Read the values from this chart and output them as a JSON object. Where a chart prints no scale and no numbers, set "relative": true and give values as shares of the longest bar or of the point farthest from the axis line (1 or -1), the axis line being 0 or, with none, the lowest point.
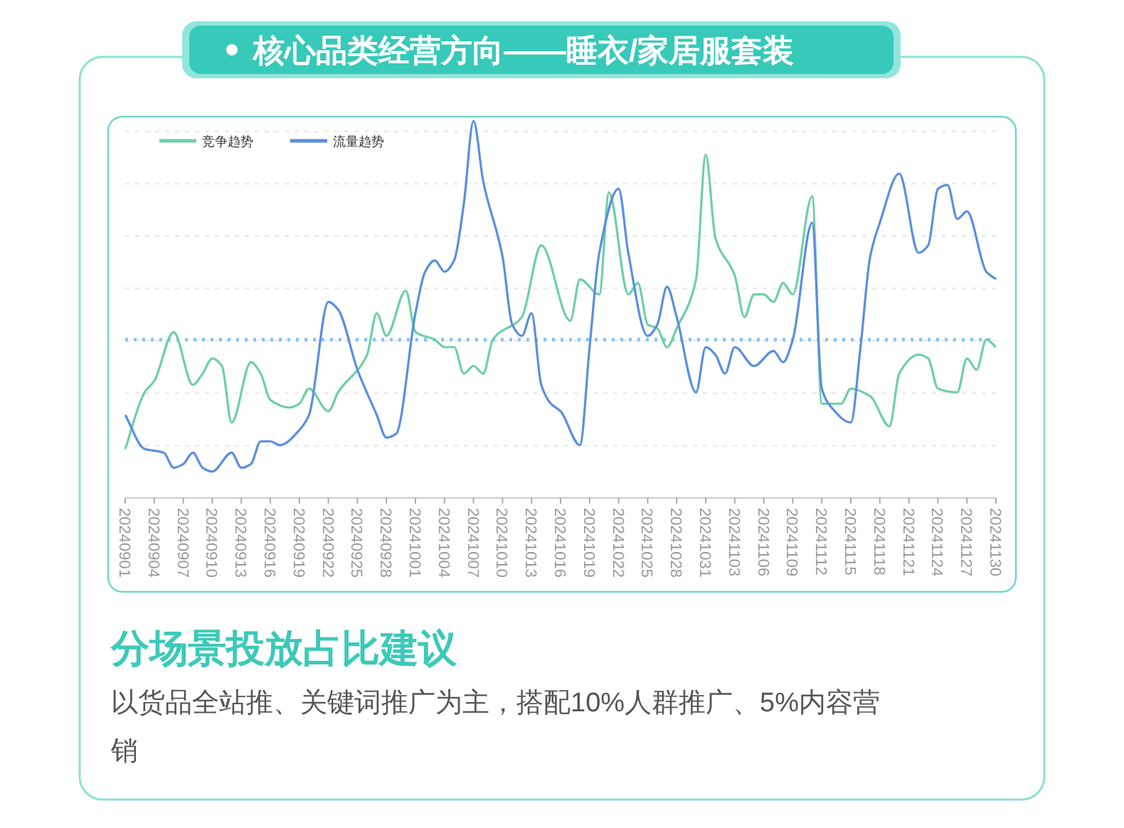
{
  "chart_data": {
    "type": "line",
    "title": "核心品类经营方向——睡衣/家居服套装",
    "relative": true,
    "legend": "top left",
    "grid": "y",
    "line_style": "solid",
    "marker": "none",
    "xlim": [
      "2024-09-01",
      "2024-11-30"
    ],
    "xticks": [
      {
        "value": "2024-09-01",
        "label": "20240901"
      },
      {
        "value": "2024-09-04",
        "label": "20240904"
      },
      {
        "value": "2024-09-07",
        "label": "20240907"
      },
      {
        "value": "2024-09-10",
        "label": "20240910"
      },
      {
        "value": "2024-09-13",
        "label": "20240913"
      },
      {
        "value": "2024-09-16",
        "label": "20240916"
      },
      {
        "value": "2024-09-19",
        "label": "20240919"
      },
      {
        "value": "2024-09-22",
        "label": "20240922"
      },
      {
        "value": "2024-09-25",
        "label": "20240925"
      },
      {
        "value": "2024-09-28",
        "label": "20240928"
      },
      {
        "value": "2024-10-01",
        "label": "20241001"
      },
      {
        "value": "2024-10-04",
        "label": "20241004"
      },
      {
        "value": "2024-10-07",
        "label": "20241007"
      },
      {
        "value": "2024-10-10",
        "label": "20241010"
      },
      {
        "value": "2024-10-13",
        "label": "20241013"
      },
      {
        "value": "2024-10-16",
        "label": "20241016"
      },
      {
        "value": "2024-10-19",
        "label": "20241019"
      },
      {
        "value": "2024-10-22",
        "label": "20241022"
      },
      {
        "value": "2024-10-25",
        "label": "20241025"
      },
      {
        "value": "2024-10-28",
        "label": "20241028"
      },
      {
        "value": "2024-10-31",
        "label": "20241031"
      },
      {
        "value": "2024-11-03",
        "label": "20241103"
      },
      {
        "value": "2024-11-06",
        "label": "20241106"
      },
      {
        "value": "2024-11-09",
        "label": "20241109"
      },
      {
        "value": "2024-11-12",
        "label": "20241112"
      },
      {
        "value": "2024-11-15",
        "label": "20241115"
      },
      {
        "value": "2024-11-18",
        "label": "20241118"
      },
      {
        "value": "2024-11-21",
        "label": "20241121"
      },
      {
        "value": "2024-11-24",
        "label": "20241124"
      },
      {
        "value": "2024-11-27",
        "label": "20241127"
      },
      {
        "value": "2024-11-30",
        "label": "20241130"
      }
    ],
    "ref_lines": [
      {
        "axis": "y",
        "value": 0.42,
        "color": "#8fc3ee",
        "line_style": "dotted"
      }
    ],
    "annotations": [
      "分场景投放占比建议",
      "以货品全站推、关键词推广为主，搭配10%人群推广、5%内容营销"
    ],
    "series": [
      {
        "name": "竞争趋势",
        "color": "#6fcfa6",
        "x": [
          "2024-09-01",
          "2024-09-03",
          "2024-09-04",
          "2024-09-06",
          "2024-09-08",
          "2024-09-09",
          "2024-09-10",
          "2024-09-11",
          "2024-09-12",
          "2024-09-14",
          "2024-09-15",
          "2024-09-16",
          "2024-09-18",
          "2024-09-19",
          "2024-09-20",
          "2024-09-22",
          "2024-09-23",
          "2024-09-26",
          "2024-09-27",
          "2024-09-28",
          "2024-09-30",
          "2024-10-01",
          "2024-10-03",
          "2024-10-04",
          "2024-10-05",
          "2024-10-06",
          "2024-10-07",
          "2024-10-08",
          "2024-10-09",
          "2024-10-12",
          "2024-10-14",
          "2024-10-17",
          "2024-10-18",
          "2024-10-20",
          "2024-10-21",
          "2024-10-23",
          "2024-10-24",
          "2024-10-25",
          "2024-10-26",
          "2024-10-27",
          "2024-10-28",
          "2024-10-30",
          "2024-10-31",
          "2024-11-01",
          "2024-11-03",
          "2024-11-04",
          "2024-11-05",
          "2024-11-06",
          "2024-11-07",
          "2024-11-08",
          "2024-11-09",
          "2024-11-11",
          "2024-11-12",
          "2024-11-14",
          "2024-11-15",
          "2024-11-17",
          "2024-11-19",
          "2024-11-20",
          "2024-11-22",
          "2024-11-23",
          "2024-11-24",
          "2024-11-26",
          "2024-11-27",
          "2024-11-28",
          "2024-11-29",
          "2024-11-30"
        ],
        "values": [
          0.13,
          0.28,
          0.31,
          0.44,
          0.3,
          0.33,
          0.37,
          0.35,
          0.2,
          0.36,
          0.33,
          0.26,
          0.24,
          0.25,
          0.29,
          0.23,
          0.28,
          0.38,
          0.49,
          0.43,
          0.55,
          0.44,
          0.42,
          0.4,
          0.4,
          0.33,
          0.35,
          0.33,
          0.42,
          0.48,
          0.67,
          0.47,
          0.58,
          0.54,
          0.81,
          0.54,
          0.57,
          0.46,
          0.45,
          0.4,
          0.45,
          0.58,
          0.91,
          0.69,
          0.59,
          0.48,
          0.54,
          0.54,
          0.52,
          0.57,
          0.54,
          0.8,
          0.25,
          0.25,
          0.29,
          0.27,
          0.19,
          0.33,
          0.38,
          0.37,
          0.29,
          0.28,
          0.37,
          0.34,
          0.42,
          0.4
        ]
      },
      {
        "name": "流量趋势",
        "color": "#5b8ee0",
        "x": [
          "2024-09-01",
          "2024-09-03",
          "2024-09-05",
          "2024-09-06",
          "2024-09-07",
          "2024-09-08",
          "2024-09-09",
          "2024-09-10",
          "2024-09-12",
          "2024-09-13",
          "2024-09-14",
          "2024-09-15",
          "2024-09-16",
          "2024-09-17",
          "2024-09-19",
          "2024-09-20",
          "2024-09-22",
          "2024-09-23",
          "2024-09-25",
          "2024-09-27",
          "2024-09-28",
          "2024-09-29",
          "2024-10-01",
          "2024-10-02",
          "2024-10-03",
          "2024-10-04",
          "2024-10-05",
          "2024-10-06",
          "2024-10-07",
          "2024-10-08",
          "2024-10-10",
          "2024-10-11",
          "2024-10-12",
          "2024-10-13",
          "2024-10-14",
          "2024-10-15",
          "2024-10-16",
          "2024-10-18",
          "2024-10-19",
          "2024-10-20",
          "2024-10-22",
          "2024-10-23",
          "2024-10-25",
          "2024-10-26",
          "2024-10-27",
          "2024-10-28",
          "2024-10-30",
          "2024-10-31",
          "2024-11-01",
          "2024-11-02",
          "2024-11-03",
          "2024-11-05",
          "2024-11-07",
          "2024-11-08",
          "2024-11-09",
          "2024-11-11",
          "2024-11-12",
          "2024-11-13",
          "2024-11-15",
          "2024-11-16",
          "2024-11-17",
          "2024-11-18",
          "2024-11-20",
          "2024-11-22",
          "2024-11-23",
          "2024-11-24",
          "2024-11-25",
          "2024-11-26",
          "2024-11-27",
          "2024-11-29",
          "2024-11-30"
        ],
        "values": [
          0.22,
          0.13,
          0.12,
          0.08,
          0.09,
          0.12,
          0.08,
          0.07,
          0.12,
          0.08,
          0.09,
          0.15,
          0.15,
          0.14,
          0.18,
          0.22,
          0.52,
          0.5,
          0.34,
          0.22,
          0.16,
          0.17,
          0.49,
          0.6,
          0.63,
          0.6,
          0.63,
          0.78,
          1,
          0.84,
          0.64,
          0.46,
          0.43,
          0.49,
          0.3,
          0.25,
          0.23,
          0.14,
          0.4,
          0.65,
          0.82,
          0.65,
          0.43,
          0.46,
          0.56,
          0.48,
          0.28,
          0.4,
          0.38,
          0.33,
          0.4,
          0.35,
          0.39,
          0.36,
          0.42,
          0.73,
          0.29,
          0.24,
          0.2,
          0.4,
          0.64,
          0.73,
          0.86,
          0.65,
          0.67,
          0.82,
          0.83,
          0.74,
          0.76,
          0.6,
          0.58
        ]
      }
    ]
  }
}
